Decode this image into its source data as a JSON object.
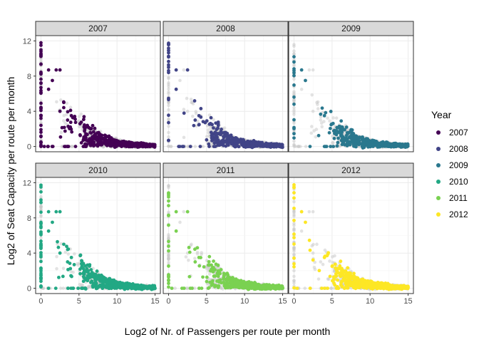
{
  "chart_data": {
    "type": "scatter",
    "facet_by": "Year",
    "xlabel": "Log2 of Nr. of Passengers per route per month",
    "ylabel": "Log2 of Seat Capacity per route per month",
    "xlim": [
      -0.7,
      15.7
    ],
    "ylim": [
      -0.6,
      12.6
    ],
    "xticks": [
      0,
      5,
      10,
      15
    ],
    "yticks": [
      0,
      4,
      8,
      12
    ],
    "background_points_color": "#c8c8c8",
    "panels": [
      {
        "year": "2007",
        "label": "2007",
        "color": "#440154"
      },
      {
        "year": "2008",
        "label": "2008",
        "color": "#414487"
      },
      {
        "year": "2009",
        "label": "2009",
        "color": "#2A788E"
      },
      {
        "year": "2010",
        "label": "2010",
        "color": "#22A884"
      },
      {
        "year": "2011",
        "label": "2011",
        "color": "#7AD151"
      },
      {
        "year": "2012",
        "label": "2012",
        "color": "#FDE725"
      }
    ],
    "legend": {
      "title": "Year",
      "position": "right",
      "entries": [
        {
          "label": "2007",
          "color": "#440154"
        },
        {
          "label": "2008",
          "color": "#414487"
        },
        {
          "label": "2009",
          "color": "#2A788E"
        },
        {
          "label": "2010",
          "color": "#22A884"
        },
        {
          "label": "2011",
          "color": "#7AD151"
        },
        {
          "label": "2012",
          "color": "#FDE725"
        }
      ]
    },
    "representative_points": {
      "y_axis_column_x": 0,
      "y_axis_column_y_range": [
        0,
        11.8
      ],
      "x_axis_row_y": 0,
      "x_axis_row_x_range": [
        0,
        6
      ],
      "outliers": [
        [
          1,
          8.7
        ],
        [
          2,
          8.7
        ],
        [
          2.5,
          8.7
        ],
        [
          1.5,
          7.5
        ],
        [
          1,
          6.5
        ],
        [
          3,
          5
        ],
        [
          4,
          3.5
        ],
        [
          2.5,
          4
        ],
        [
          3.5,
          3
        ]
      ],
      "main_cloud": {
        "x_range": [
          5,
          15
        ],
        "y_range": [
          -0.3,
          3
        ],
        "note": "dense cloud whose y decreases as x increases"
      }
    }
  }
}
